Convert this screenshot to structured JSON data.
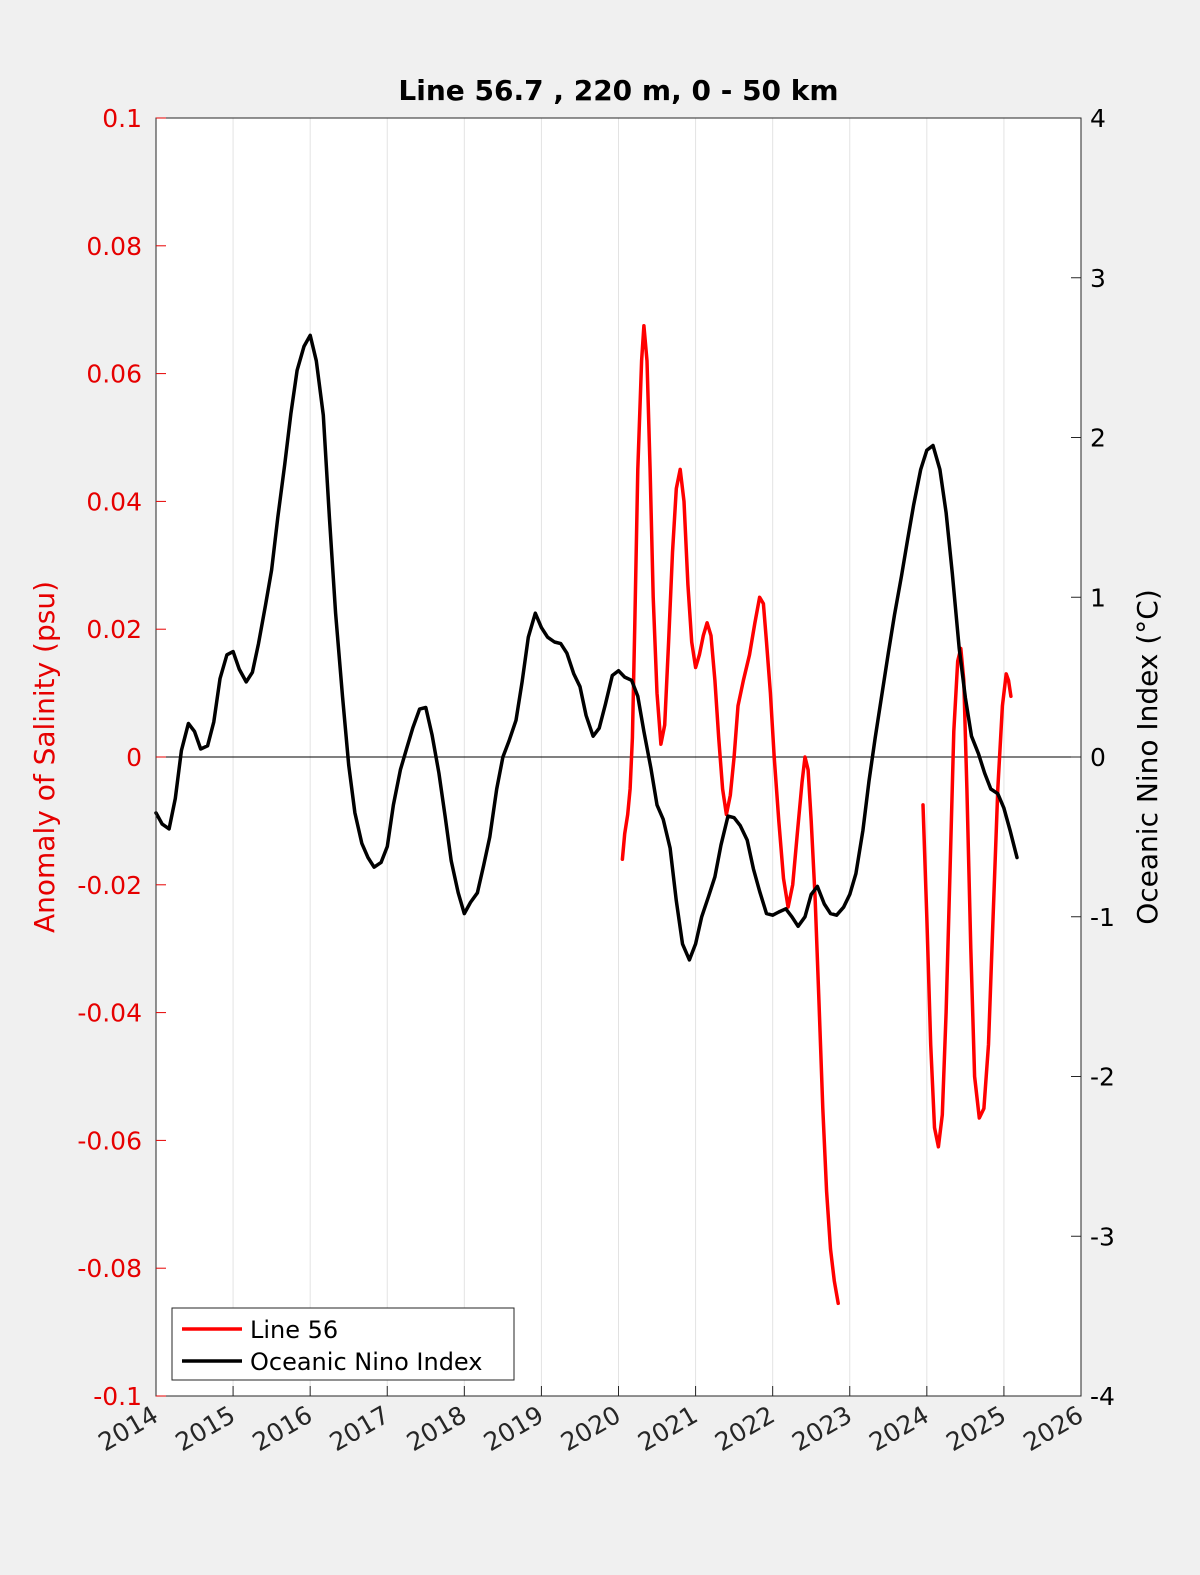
{
  "chart_data": {
    "type": "line",
    "title": "Line 56.7 , 220 m, 0 - 50 km",
    "xlabel": "",
    "ylabel_left": "Anomaly of Salinity (psu)",
    "ylabel_right": "Oceanic Nino Index (°C)",
    "xlim": [
      2014,
      2026
    ],
    "ylim_left": [
      -0.1,
      0.1
    ],
    "ylim_right": [
      -4,
      4
    ],
    "x_ticks": [
      "2014",
      "2015",
      "2016",
      "2017",
      "2018",
      "2019",
      "2020",
      "2021",
      "2022",
      "2023",
      "2024",
      "2025",
      "2026"
    ],
    "y_ticks_left": [
      "0.1",
      "0.08",
      "0.06",
      "0.04",
      "0.02",
      "0",
      "-0.02",
      "-0.04",
      "-0.06",
      "-0.08",
      "-0.1"
    ],
    "y_ticks_right": [
      "4",
      "3",
      "2",
      "1",
      "0",
      "-1",
      "-2",
      "-3",
      "-4"
    ],
    "grid": "vertical",
    "legend_position": "bottom-left",
    "colors": {
      "salinity": "#ff0000",
      "oni": "#000000",
      "left_axis": "#e60000",
      "background": "#f0f0f0",
      "plot_bg": "#ffffff"
    },
    "series": [
      {
        "name": "Line 56",
        "axis": "left",
        "color": "#ff0000",
        "points": [
          [
            2020.05,
            -0.016
          ],
          [
            2020.08,
            -0.012
          ],
          [
            2020.12,
            -0.009
          ],
          [
            2020.15,
            -0.005
          ],
          [
            2020.18,
            0.003
          ],
          [
            2020.21,
            0.02
          ],
          [
            2020.25,
            0.045
          ],
          [
            2020.3,
            0.062
          ],
          [
            2020.33,
            0.0675
          ],
          [
            2020.37,
            0.062
          ],
          [
            2020.41,
            0.045
          ],
          [
            2020.45,
            0.025
          ],
          [
            2020.5,
            0.01
          ],
          [
            2020.55,
            0.002
          ],
          [
            2020.6,
            0.005
          ],
          [
            2020.65,
            0.018
          ],
          [
            2020.7,
            0.032
          ],
          [
            2020.75,
            0.042
          ],
          [
            2020.8,
            0.045
          ],
          [
            2020.85,
            0.04
          ],
          [
            2020.9,
            0.027
          ],
          [
            2020.95,
            0.018
          ],
          [
            2021.0,
            0.014
          ],
          [
            2021.05,
            0.016
          ],
          [
            2021.1,
            0.019
          ],
          [
            2021.15,
            0.021
          ],
          [
            2021.2,
            0.019
          ],
          [
            2021.25,
            0.012
          ],
          [
            2021.3,
            0.003
          ],
          [
            2021.35,
            -0.005
          ],
          [
            2021.4,
            -0.009
          ],
          [
            2021.45,
            -0.006
          ],
          [
            2021.5,
            0.0
          ],
          [
            2021.55,
            0.008
          ],
          [
            2021.62,
            0.012
          ],
          [
            2021.7,
            0.016
          ],
          [
            2021.77,
            0.021
          ],
          [
            2021.83,
            0.025
          ],
          [
            2021.88,
            0.024
          ],
          [
            2021.92,
            0.018
          ],
          [
            2021.97,
            0.01
          ],
          [
            2022.02,
            0.0
          ],
          [
            2022.08,
            -0.01
          ],
          [
            2022.14,
            -0.019
          ],
          [
            2022.2,
            -0.0235
          ],
          [
            2022.26,
            -0.02
          ],
          [
            2022.32,
            -0.012
          ],
          [
            2022.38,
            -0.004
          ],
          [
            2022.42,
            0.0
          ],
          [
            2022.46,
            -0.002
          ],
          [
            2022.5,
            -0.01
          ],
          [
            2022.55,
            -0.022
          ],
          [
            2022.6,
            -0.038
          ],
          [
            2022.65,
            -0.055
          ],
          [
            2022.7,
            -0.068
          ],
          [
            2022.75,
            -0.077
          ],
          [
            2022.8,
            -0.082
          ],
          [
            2022.85,
            -0.0855
          ],
          null,
          [
            2023.95,
            -0.0075
          ],
          [
            2024.0,
            -0.025
          ],
          [
            2024.05,
            -0.045
          ],
          [
            2024.1,
            -0.058
          ],
          [
            2024.15,
            -0.061
          ],
          [
            2024.2,
            -0.056
          ],
          [
            2024.25,
            -0.04
          ],
          [
            2024.3,
            -0.018
          ],
          [
            2024.35,
            0.004
          ],
          [
            2024.4,
            0.015
          ],
          [
            2024.44,
            0.017
          ],
          [
            2024.48,
            0.012
          ],
          [
            2024.52,
            -0.005
          ],
          [
            2024.57,
            -0.03
          ],
          [
            2024.62,
            -0.05
          ],
          [
            2024.68,
            -0.0565
          ],
          [
            2024.74,
            -0.055
          ],
          [
            2024.8,
            -0.045
          ],
          [
            2024.86,
            -0.025
          ],
          [
            2024.92,
            -0.005
          ],
          [
            2024.98,
            0.008
          ],
          [
            2025.03,
            0.013
          ],
          [
            2025.06,
            0.012
          ],
          [
            2025.09,
            0.0095
          ]
        ]
      },
      {
        "name": "Oceanic Nino Index",
        "axis": "right",
        "color": "#000000",
        "points": [
          [
            2014.0,
            -0.35
          ],
          [
            2014.08,
            -0.42
          ],
          [
            2014.17,
            -0.45
          ],
          [
            2014.25,
            -0.26
          ],
          [
            2014.33,
            0.04
          ],
          [
            2014.42,
            0.21
          ],
          [
            2014.5,
            0.16
          ],
          [
            2014.58,
            0.05
          ],
          [
            2014.67,
            0.07
          ],
          [
            2014.75,
            0.22
          ],
          [
            2014.83,
            0.49
          ],
          [
            2014.92,
            0.64
          ],
          [
            2015.0,
            0.66
          ],
          [
            2015.08,
            0.55
          ],
          [
            2015.17,
            0.47
          ],
          [
            2015.25,
            0.53
          ],
          [
            2015.33,
            0.71
          ],
          [
            2015.42,
            0.95
          ],
          [
            2015.5,
            1.17
          ],
          [
            2015.58,
            1.5
          ],
          [
            2015.67,
            1.83
          ],
          [
            2015.75,
            2.15
          ],
          [
            2015.83,
            2.42
          ],
          [
            2015.92,
            2.57
          ],
          [
            2016.0,
            2.64
          ],
          [
            2016.08,
            2.48
          ],
          [
            2016.17,
            2.14
          ],
          [
            2016.25,
            1.5
          ],
          [
            2016.33,
            0.9
          ],
          [
            2016.42,
            0.38
          ],
          [
            2016.5,
            -0.05
          ],
          [
            2016.58,
            -0.35
          ],
          [
            2016.67,
            -0.54
          ],
          [
            2016.75,
            -0.63
          ],
          [
            2016.83,
            -0.69
          ],
          [
            2016.92,
            -0.66
          ],
          [
            2017.0,
            -0.56
          ],
          [
            2017.08,
            -0.3
          ],
          [
            2017.17,
            -0.08
          ],
          [
            2017.25,
            0.05
          ],
          [
            2017.33,
            0.18
          ],
          [
            2017.42,
            0.3
          ],
          [
            2017.5,
            0.31
          ],
          [
            2017.58,
            0.14
          ],
          [
            2017.67,
            -0.1
          ],
          [
            2017.75,
            -0.37
          ],
          [
            2017.83,
            -0.65
          ],
          [
            2017.92,
            -0.85
          ],
          [
            2018.0,
            -0.98
          ],
          [
            2018.08,
            -0.91
          ],
          [
            2018.17,
            -0.85
          ],
          [
            2018.25,
            -0.68
          ],
          [
            2018.33,
            -0.5
          ],
          [
            2018.42,
            -0.2
          ],
          [
            2018.5,
            0.0
          ],
          [
            2018.58,
            0.1
          ],
          [
            2018.67,
            0.23
          ],
          [
            2018.75,
            0.47
          ],
          [
            2018.83,
            0.75
          ],
          [
            2018.92,
            0.9
          ],
          [
            2019.0,
            0.81
          ],
          [
            2019.08,
            0.75
          ],
          [
            2019.17,
            0.72
          ],
          [
            2019.25,
            0.71
          ],
          [
            2019.33,
            0.65
          ],
          [
            2019.42,
            0.52
          ],
          [
            2019.5,
            0.44
          ],
          [
            2019.58,
            0.26
          ],
          [
            2019.67,
            0.13
          ],
          [
            2019.75,
            0.18
          ],
          [
            2019.83,
            0.33
          ],
          [
            2019.92,
            0.51
          ],
          [
            2020.0,
            0.54
          ],
          [
            2020.08,
            0.5
          ],
          [
            2020.17,
            0.48
          ],
          [
            2020.25,
            0.38
          ],
          [
            2020.33,
            0.16
          ],
          [
            2020.42,
            -0.07
          ],
          [
            2020.5,
            -0.3
          ],
          [
            2020.58,
            -0.39
          ],
          [
            2020.67,
            -0.57
          ],
          [
            2020.75,
            -0.9
          ],
          [
            2020.83,
            -1.17
          ],
          [
            2020.92,
            -1.27
          ],
          [
            2021.0,
            -1.17
          ],
          [
            2021.08,
            -1.0
          ],
          [
            2021.17,
            -0.87
          ],
          [
            2021.25,
            -0.75
          ],
          [
            2021.33,
            -0.55
          ],
          [
            2021.42,
            -0.37
          ],
          [
            2021.5,
            -0.38
          ],
          [
            2021.58,
            -0.43
          ],
          [
            2021.67,
            -0.52
          ],
          [
            2021.75,
            -0.7
          ],
          [
            2021.83,
            -0.84
          ],
          [
            2021.92,
            -0.98
          ],
          [
            2022.0,
            -0.99
          ],
          [
            2022.08,
            -0.97
          ],
          [
            2022.17,
            -0.95
          ],
          [
            2022.25,
            -1.0
          ],
          [
            2022.33,
            -1.06
          ],
          [
            2022.42,
            -1.0
          ],
          [
            2022.5,
            -0.86
          ],
          [
            2022.58,
            -0.81
          ],
          [
            2022.67,
            -0.92
          ],
          [
            2022.75,
            -0.98
          ],
          [
            2022.83,
            -0.99
          ],
          [
            2022.92,
            -0.94
          ],
          [
            2023.0,
            -0.86
          ],
          [
            2023.08,
            -0.73
          ],
          [
            2023.17,
            -0.46
          ],
          [
            2023.25,
            -0.15
          ],
          [
            2023.33,
            0.12
          ],
          [
            2023.42,
            0.4
          ],
          [
            2023.5,
            0.65
          ],
          [
            2023.58,
            0.89
          ],
          [
            2023.67,
            1.13
          ],
          [
            2023.75,
            1.36
          ],
          [
            2023.83,
            1.58
          ],
          [
            2023.92,
            1.8
          ],
          [
            2024.0,
            1.92
          ],
          [
            2024.08,
            1.95
          ],
          [
            2024.17,
            1.8
          ],
          [
            2024.25,
            1.53
          ],
          [
            2024.33,
            1.15
          ],
          [
            2024.42,
            0.68
          ],
          [
            2024.5,
            0.37
          ],
          [
            2024.58,
            0.13
          ],
          [
            2024.67,
            0.02
          ],
          [
            2024.75,
            -0.1
          ],
          [
            2024.83,
            -0.2
          ],
          [
            2024.92,
            -0.23
          ],
          [
            2025.0,
            -0.32
          ],
          [
            2025.08,
            -0.46
          ],
          [
            2025.17,
            -0.63
          ]
        ]
      }
    ]
  }
}
